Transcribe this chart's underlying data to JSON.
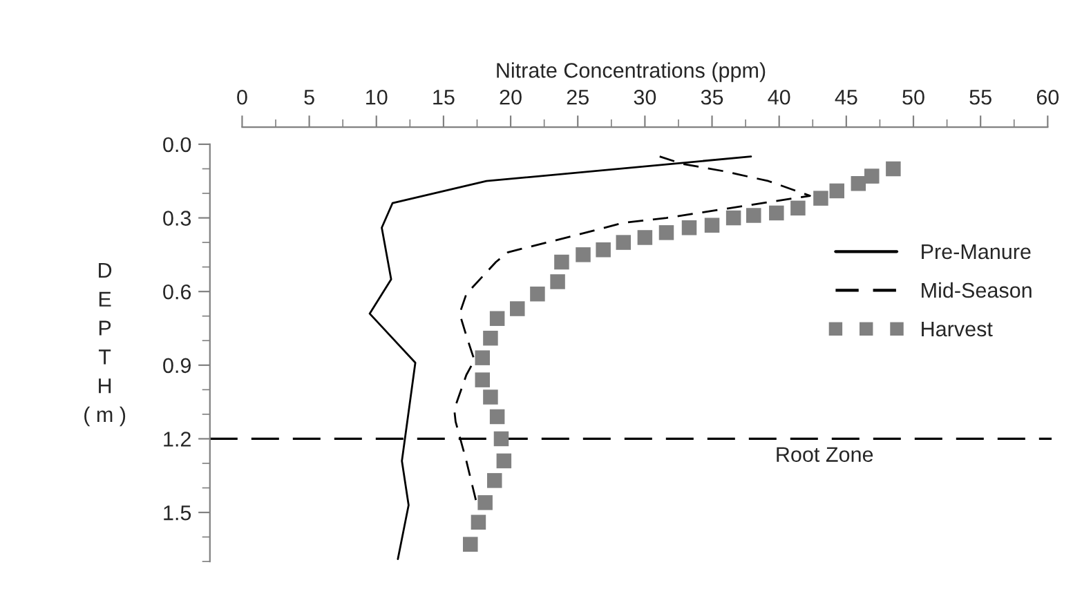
{
  "chart_data": {
    "type": "line",
    "xlabel": "Nitrate Concentrations (ppm)",
    "ylabel": "D\nE\nP\nT\nH\n( m )",
    "xlim": [
      -2.4,
      60.3
    ],
    "ylim": [
      1.7,
      -0.07
    ],
    "xticks": [
      0,
      5,
      10,
      15,
      20,
      25,
      30,
      35,
      40,
      45,
      50,
      55,
      60
    ],
    "yticks": [
      {
        "value": 0,
        "label": "0.0"
      },
      {
        "value": 0.3,
        "label": "0.3"
      },
      {
        "value": 0.6,
        "label": "0.6"
      },
      {
        "value": 0.9,
        "label": "0.9"
      },
      {
        "value": 1.2,
        "label": "1.2"
      },
      {
        "value": 1.5,
        "label": "1.5"
      }
    ],
    "grid": false,
    "legend": "right",
    "series": [
      {
        "name": "Pre-Manure",
        "color": "#000000",
        "line_style": "solid",
        "x": [
          37.9,
          18.2,
          11.2,
          10.4,
          11.1,
          9.5,
          12.9,
          11.9,
          12.4,
          11.6
        ],
        "values": [
          0.05,
          0.15,
          0.24,
          0.34,
          0.55,
          0.69,
          0.89,
          1.29,
          1.47,
          1.69
        ]
      },
      {
        "name": "Mid-Season",
        "color": "#000000",
        "line_style": "dashed",
        "x": [
          31.1,
          32.8,
          35.9,
          39.2,
          42.3,
          31.6,
          28.4,
          24.9,
          19.8,
          18.9,
          16.7,
          16.2,
          16.7,
          17.3,
          16.7,
          15.8,
          15.9,
          16.7,
          17.5
        ],
        "values": [
          0.05,
          0.08,
          0.11,
          0.15,
          0.21,
          0.3,
          0.32,
          0.37,
          0.44,
          0.48,
          0.61,
          0.69,
          0.78,
          0.88,
          0.94,
          1.08,
          1.13,
          1.29,
          1.47
        ]
      },
      {
        "name": "Harvest",
        "type": "scatter",
        "marker": "square",
        "color": "#808080",
        "x": [
          48.5,
          46.9,
          45.9,
          44.3,
          43.1,
          41.4,
          39.8,
          38.1,
          36.6,
          35.0,
          33.3,
          31.6,
          30.0,
          28.4,
          26.9,
          25.4,
          23.8,
          23.5,
          22.0,
          20.5,
          19.0,
          18.5,
          17.9,
          17.9,
          18.5,
          19.0,
          19.3,
          19.5,
          18.8,
          18.1,
          17.6,
          17.0
        ],
        "values": [
          0.1,
          0.13,
          0.16,
          0.19,
          0.22,
          0.26,
          0.28,
          0.29,
          0.3,
          0.33,
          0.34,
          0.36,
          0.38,
          0.4,
          0.43,
          0.45,
          0.48,
          0.56,
          0.61,
          0.67,
          0.71,
          0.79,
          0.87,
          0.96,
          1.03,
          1.11,
          1.2,
          1.29,
          1.37,
          1.46,
          1.54,
          1.63
        ]
      }
    ],
    "ref_lines": [
      {
        "axis": "y",
        "value": 1.2,
        "label": "Root Zone",
        "line_style": "dashed",
        "color": "#000000"
      }
    ]
  }
}
